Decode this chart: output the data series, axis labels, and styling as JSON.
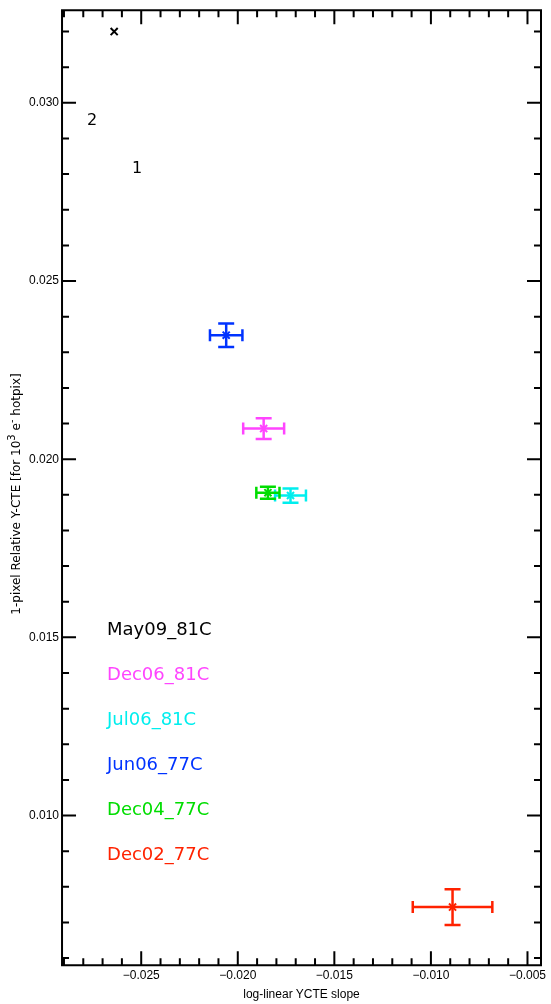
{
  "chart_data": {
    "type": "scatter",
    "xlabel": "log-linear YCTE slope",
    "ylabel": "1-pixel Relative Y-CTE [for 10$^{3}$ e$^{-}$ hotpix]",
    "xlim": [
      -0.0291,
      -0.0043
    ],
    "ylim": [
      0.0058,
      0.0326
    ],
    "xticks": [
      {
        "value": -0.029,
        "label": null
      },
      {
        "value": -0.028,
        "label": null
      },
      {
        "value": -0.027,
        "label": null
      },
      {
        "value": -0.026,
        "label": null
      },
      {
        "value": -0.025,
        "label": "−0.025"
      },
      {
        "value": -0.024,
        "label": null
      },
      {
        "value": -0.023,
        "label": null
      },
      {
        "value": -0.022,
        "label": null
      },
      {
        "value": -0.021,
        "label": null
      },
      {
        "value": -0.02,
        "label": "−0.020"
      },
      {
        "value": -0.019,
        "label": null
      },
      {
        "value": -0.018,
        "label": null
      },
      {
        "value": -0.017,
        "label": null
      },
      {
        "value": -0.016,
        "label": null
      },
      {
        "value": -0.015,
        "label": "−0.015"
      },
      {
        "value": -0.014,
        "label": null
      },
      {
        "value": -0.013,
        "label": null
      },
      {
        "value": -0.012,
        "label": null
      },
      {
        "value": -0.011,
        "label": null
      },
      {
        "value": -0.01,
        "label": "−0.010"
      },
      {
        "value": -0.009,
        "label": null
      },
      {
        "value": -0.008,
        "label": null
      },
      {
        "value": -0.007,
        "label": null
      },
      {
        "value": -0.006,
        "label": null
      },
      {
        "value": -0.005,
        "label": "−0.005"
      }
    ],
    "yticks": [
      {
        "value": 0.006,
        "label": null
      },
      {
        "value": 0.007,
        "label": null
      },
      {
        "value": 0.008,
        "label": null
      },
      {
        "value": 0.009,
        "label": null
      },
      {
        "value": 0.01,
        "label": "0.010"
      },
      {
        "value": 0.011,
        "label": null
      },
      {
        "value": 0.012,
        "label": null
      },
      {
        "value": 0.013,
        "label": null
      },
      {
        "value": 0.014,
        "label": null
      },
      {
        "value": 0.015,
        "label": "0.015"
      },
      {
        "value": 0.016,
        "label": null
      },
      {
        "value": 0.017,
        "label": null
      },
      {
        "value": 0.018,
        "label": null
      },
      {
        "value": 0.019,
        "label": null
      },
      {
        "value": 0.02,
        "label": "0.020"
      },
      {
        "value": 0.021,
        "label": null
      },
      {
        "value": 0.022,
        "label": null
      },
      {
        "value": 0.023,
        "label": null
      },
      {
        "value": 0.024,
        "label": null
      },
      {
        "value": 0.025,
        "label": "0.025"
      },
      {
        "value": 0.026,
        "label": null
      },
      {
        "value": 0.027,
        "label": null
      },
      {
        "value": 0.028,
        "label": null
      },
      {
        "value": 0.029,
        "label": null
      },
      {
        "value": 0.03,
        "label": "0.030"
      },
      {
        "value": 0.031,
        "label": null
      },
      {
        "value": 0.032,
        "label": null
      }
    ],
    "grid": false,
    "legend": "bottom left",
    "marker": "cross",
    "series": [
      {
        "name": "May09_81C",
        "color": "#000000",
        "x": [
          -0.0264
        ],
        "values": [
          0.032
        ]
      },
      {
        "name": "Dec06_81C",
        "color": "#ff44ff",
        "x": [
          -0.01866
        ],
        "values": [
          0.02086
        ],
        "xerrors": [
          0.00106
        ],
        "errors": [
          0.00029
        ]
      },
      {
        "name": "Jul06_81C",
        "color": "#00eeee",
        "x": [
          -0.01727
        ],
        "values": [
          0.01898
        ],
        "xerrors": [
          0.0008
        ],
        "errors": [
          0.0002
        ]
      },
      {
        "name": "Jun06_77C",
        "color": "#0033ff",
        "x": [
          -0.0206
        ],
        "values": [
          0.02348
        ],
        "xerrors": [
          0.00084
        ],
        "errors": [
          0.00033
        ]
      },
      {
        "name": "Dec04_77C",
        "color": "#00dd00",
        "x": [
          -0.01844
        ],
        "values": [
          0.01906
        ],
        "xerrors": [
          0.0006
        ],
        "errors": [
          0.00017
        ]
      },
      {
        "name": "Dec02_77C",
        "color": "#ff2200",
        "x": [
          -0.00888
        ],
        "values": [
          0.00743
        ],
        "xerrors": [
          0.00206
        ],
        "errors": [
          0.0005
        ]
      }
    ],
    "annotations": [
      "1",
      "2"
    ]
  }
}
